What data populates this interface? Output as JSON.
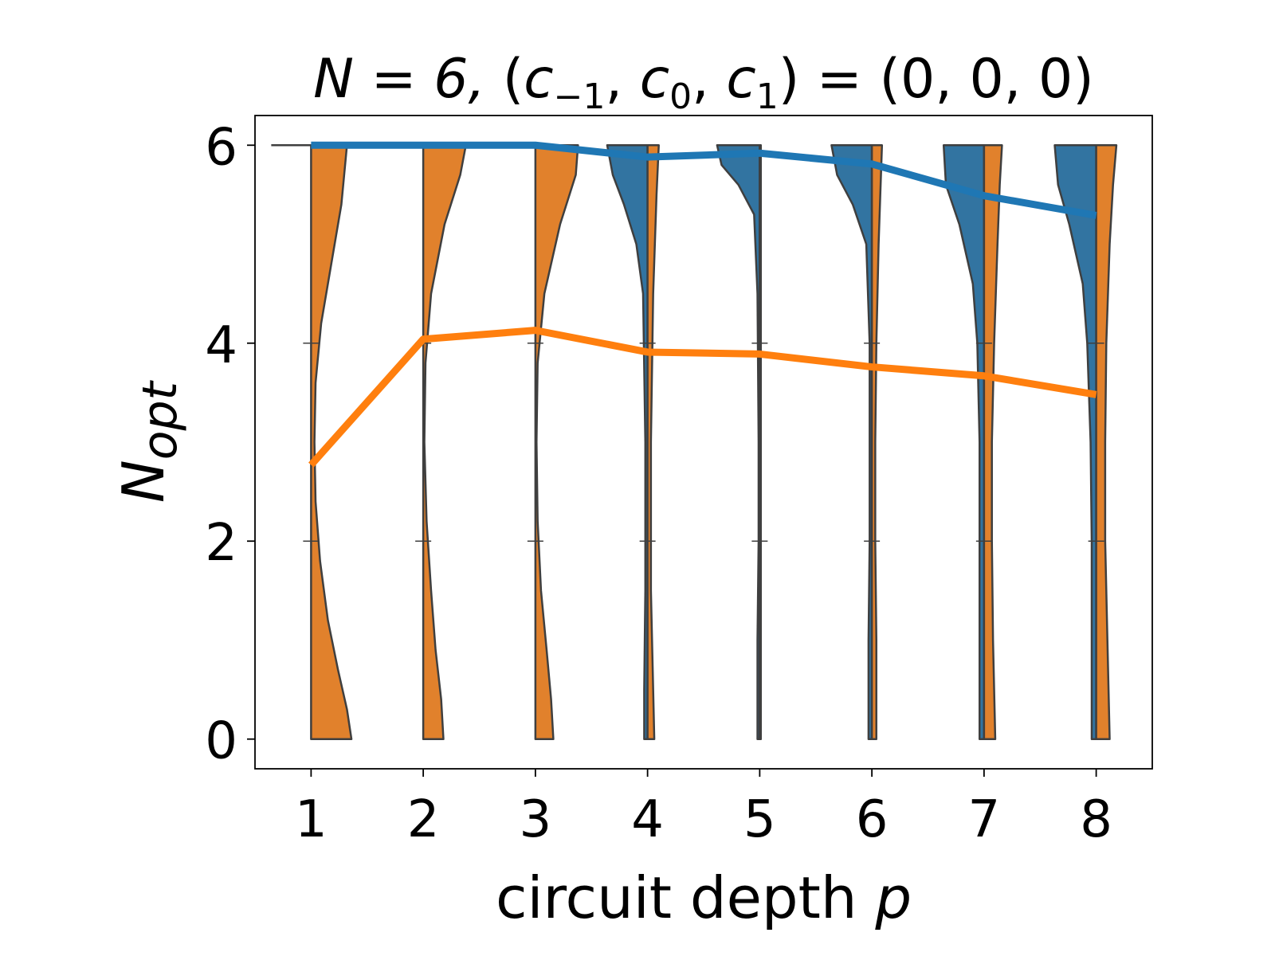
{
  "chart_data": {
    "type": "violin+line",
    "title": {
      "main": "N = 6, ",
      "symbol": "c",
      "sub_minus1": "−1",
      "sub_0": "0",
      "sub_1": "1",
      "rhs": " = (0, 0, 0)"
    },
    "xlabel": {
      "text": "circuit depth ",
      "var": "p"
    },
    "ylabel": {
      "base": "N",
      "sub": "opt"
    },
    "x_ticks": [
      "1",
      "2",
      "3",
      "4",
      "5",
      "6",
      "7",
      "8"
    ],
    "y_ticks": [
      "0",
      "2",
      "4",
      "6"
    ],
    "xlim": [
      0.5,
      8.5
    ],
    "ylim": [
      -0.3,
      6.3
    ],
    "grid": false,
    "legend": "none",
    "colors": {
      "blue": "#1f77b4",
      "orange": "#ff7f0e",
      "violin_blue": "#3274a1",
      "violin_orange": "#e1812c",
      "edge": "#3f3f3f"
    },
    "series": [
      {
        "color": "blue",
        "x": [
          1,
          2,
          3,
          4,
          5,
          6,
          7,
          8
        ],
        "values": [
          6.0,
          6.0,
          6.0,
          5.88,
          5.92,
          5.81,
          5.49,
          5.29
        ]
      },
      {
        "color": "orange",
        "x": [
          1,
          2,
          3,
          4,
          5,
          6,
          7,
          8
        ],
        "values": [
          2.77,
          4.04,
          4.13,
          3.91,
          3.89,
          3.76,
          3.67,
          3.48
        ]
      }
    ],
    "violins": [
      {
        "x": 1,
        "left": {
          "color": "blue",
          "y": [
            6.0
          ],
          "w": [
            0.0
          ]
        },
        "right": {
          "color": "orange",
          "y": [
            0,
            0.3,
            0.7,
            1.2,
            1.8,
            2.4,
            3.0,
            3.6,
            4.2,
            4.8,
            5.4,
            6.0
          ],
          "w": [
            0.36,
            0.32,
            0.24,
            0.15,
            0.08,
            0.04,
            0.03,
            0.04,
            0.09,
            0.18,
            0.27,
            0.32
          ]
        }
      },
      {
        "x": 2,
        "left": {
          "color": "blue",
          "y": [
            6.0
          ],
          "w": [
            0.0
          ]
        },
        "right": {
          "color": "orange",
          "y": [
            0,
            0.4,
            0.9,
            1.5,
            2.2,
            3.0,
            3.8,
            4.5,
            5.2,
            5.7,
            6.0
          ],
          "w": [
            0.18,
            0.16,
            0.11,
            0.07,
            0.03,
            0.01,
            0.02,
            0.07,
            0.19,
            0.33,
            0.38
          ]
        }
      },
      {
        "x": 3,
        "left": {
          "color": "blue",
          "y": [
            6.0
          ],
          "w": [
            0.0
          ]
        },
        "right": {
          "color": "orange",
          "y": [
            0,
            0.4,
            0.9,
            1.5,
            2.2,
            3.0,
            3.8,
            4.5,
            5.2,
            5.7,
            6.0
          ],
          "w": [
            0.16,
            0.14,
            0.1,
            0.05,
            0.02,
            0.01,
            0.02,
            0.08,
            0.22,
            0.36,
            0.38
          ]
        }
      },
      {
        "x": 4,
        "left": {
          "color": "blue",
          "y": [
            0,
            0.5,
            1.5,
            3.0,
            4.5,
            5.0,
            5.4,
            5.7,
            6.0
          ],
          "w": [
            0.03,
            0.03,
            0.02,
            0.02,
            0.04,
            0.1,
            0.21,
            0.31,
            0.36
          ]
        },
        "right": {
          "color": "orange",
          "y": [
            0,
            0.5,
            1.5,
            3.0,
            4.5,
            5.5,
            6.0
          ],
          "w": [
            0.06,
            0.05,
            0.03,
            0.03,
            0.05,
            0.08,
            0.1
          ]
        }
      },
      {
        "x": 5,
        "left": {
          "color": "blue",
          "y": [
            0,
            1.0,
            2.0,
            3.0,
            4.5,
            5.3,
            5.6,
            5.8,
            6.0
          ],
          "w": [
            0.02,
            0.02,
            0.01,
            0.01,
            0.02,
            0.05,
            0.19,
            0.34,
            0.38
          ]
        },
        "right": {
          "color": "orange",
          "y": [
            0,
            2.0,
            4.0,
            6.0
          ],
          "w": [
            0.01,
            0.01,
            0.01,
            0.01
          ]
        }
      },
      {
        "x": 6,
        "left": {
          "color": "blue",
          "y": [
            0,
            1.0,
            2.0,
            3.0,
            4.0,
            5.0,
            5.4,
            5.7,
            6.0
          ],
          "w": [
            0.03,
            0.03,
            0.02,
            0.02,
            0.02,
            0.05,
            0.17,
            0.31,
            0.36
          ]
        },
        "right": {
          "color": "orange",
          "y": [
            0,
            1.0,
            2.0,
            3.0,
            4.0,
            5.0,
            6.0
          ],
          "w": [
            0.04,
            0.04,
            0.03,
            0.03,
            0.04,
            0.06,
            0.09
          ]
        }
      },
      {
        "x": 7,
        "left": {
          "color": "blue",
          "y": [
            0,
            1.0,
            2.0,
            3.0,
            4.0,
            4.6,
            5.2,
            5.6,
            6.0
          ],
          "w": [
            0.04,
            0.04,
            0.04,
            0.04,
            0.06,
            0.1,
            0.22,
            0.34,
            0.36
          ]
        },
        "right": {
          "color": "orange",
          "y": [
            0,
            1.0,
            2.0,
            3.0,
            4.0,
            5.0,
            5.6,
            6.0
          ],
          "w": [
            0.1,
            0.08,
            0.07,
            0.07,
            0.09,
            0.12,
            0.14,
            0.16
          ]
        }
      },
      {
        "x": 8,
        "left": {
          "color": "blue",
          "y": [
            0,
            1.0,
            2.0,
            3.0,
            4.0,
            4.6,
            5.2,
            5.6,
            6.0
          ],
          "w": [
            0.04,
            0.04,
            0.04,
            0.05,
            0.08,
            0.12,
            0.24,
            0.34,
            0.37
          ]
        },
        "right": {
          "color": "orange",
          "y": [
            0,
            1.0,
            2.0,
            3.0,
            4.0,
            5.0,
            5.6,
            6.0
          ],
          "w": [
            0.12,
            0.1,
            0.08,
            0.08,
            0.09,
            0.12,
            0.15,
            0.18
          ]
        }
      }
    ]
  }
}
